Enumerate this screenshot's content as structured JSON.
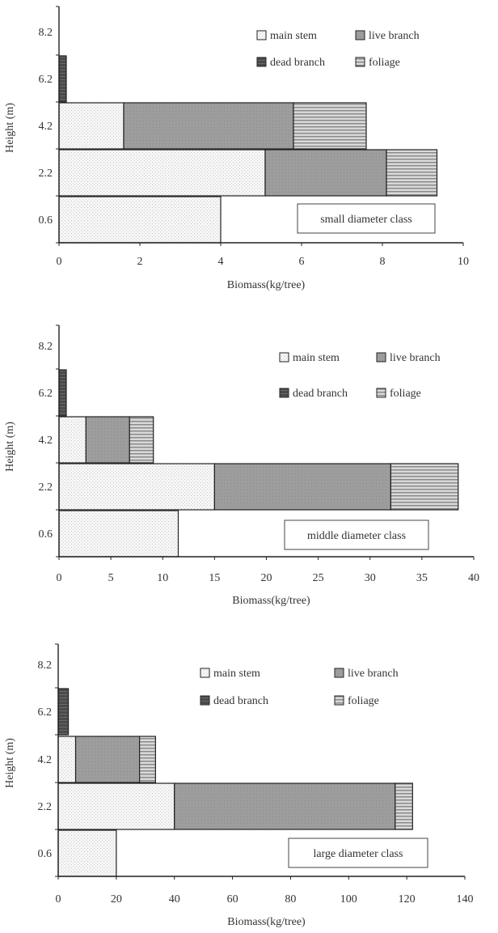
{
  "chart_data": [
    {
      "type": "bar",
      "orientation": "horizontal",
      "stacked": true,
      "class_label": "small diameter class",
      "xlabel": "Biomass(kg/tree)",
      "ylabel": "Height (m)",
      "categories": [
        "0.6",
        "2.2",
        "4.2",
        "6.2",
        "8.2"
      ],
      "xlim": [
        0,
        10
      ],
      "xticks": [
        "0",
        "2",
        "4",
        "6",
        "8",
        "10"
      ],
      "legend_placement": "top-right",
      "series": [
        {
          "name": "main stem",
          "values": [
            4.0,
            5.1,
            1.6,
            0,
            0
          ]
        },
        {
          "name": "live branch",
          "values": [
            0,
            3.0,
            4.2,
            0,
            0
          ]
        },
        {
          "name": "dead branch",
          "values": [
            0,
            0,
            0,
            0.18,
            0
          ]
        },
        {
          "name": "foliage",
          "values": [
            0,
            1.25,
            1.8,
            0,
            0
          ]
        }
      ]
    },
    {
      "type": "bar",
      "orientation": "horizontal",
      "stacked": true,
      "class_label": "middle diameter class",
      "xlabel": "Biomass(kg/tree)",
      "ylabel": "Height (m)",
      "categories": [
        "0.6",
        "2.2",
        "4.2",
        "6.2",
        "8.2"
      ],
      "xlim": [
        0,
        40
      ],
      "xticks": [
        "0",
        "5",
        "10",
        "15",
        "20",
        "25",
        "30",
        "35",
        "40"
      ],
      "legend_placement": "top-right",
      "series": [
        {
          "name": "main stem",
          "values": [
            11.5,
            15.0,
            2.6,
            0,
            0
          ]
        },
        {
          "name": "live branch",
          "values": [
            0,
            17.0,
            4.2,
            0,
            0
          ]
        },
        {
          "name": "dead branch",
          "values": [
            0,
            0,
            0,
            0.7,
            0
          ]
        },
        {
          "name": "foliage",
          "values": [
            0,
            6.5,
            2.3,
            0,
            0
          ]
        }
      ]
    },
    {
      "type": "bar",
      "orientation": "horizontal",
      "stacked": true,
      "class_label": "large diameter class",
      "xlabel": "Biomass(kg/tree)",
      "ylabel": "Height (m)",
      "categories": [
        "0.6",
        "2.2",
        "4.2",
        "6.2",
        "8.2"
      ],
      "xlim": [
        0,
        140
      ],
      "xticks": [
        "0",
        "20",
        "40",
        "60",
        "80",
        "100",
        "120",
        "140"
      ],
      "legend_placement": "top-right",
      "series": [
        {
          "name": "main stem",
          "values": [
            20.0,
            40.0,
            6.0,
            0,
            0
          ]
        },
        {
          "name": "live branch",
          "values": [
            0,
            76.0,
            22.0,
            0,
            0
          ]
        },
        {
          "name": "dead branch",
          "values": [
            0,
            0,
            0,
            3.5,
            0
          ]
        },
        {
          "name": "foliage",
          "values": [
            0,
            6.0,
            5.5,
            0,
            0
          ]
        }
      ]
    }
  ]
}
